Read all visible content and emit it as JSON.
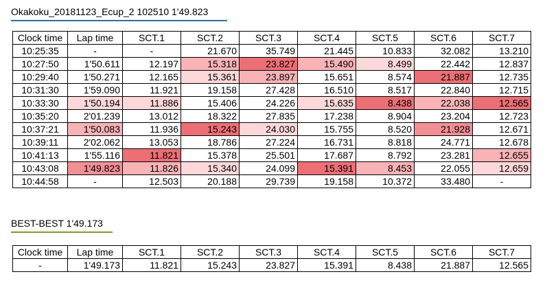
{
  "session": {
    "title": "Okakoku_20181123_Ecup_2 102510 1'49.823",
    "underline_color": "#2e6ba4"
  },
  "best": {
    "title": "BEST-BEST 1'49.173",
    "underline_color": "#7a9a2e"
  },
  "colors": {
    "level1": "#fcd8da",
    "level2": "#f8b3b7",
    "level3": "#f28f95",
    "level4": "#ec6f76"
  },
  "headers": [
    "Clock time",
    "Lap time",
    "SCT.1",
    "SCT.2",
    "SCT.3",
    "SCT.4",
    "SCT.5",
    "SCT.6",
    "SCT.7"
  ],
  "laps": [
    {
      "cells": [
        "10:25:35",
        "-",
        "-",
        "21.670",
        "35.749",
        "21.445",
        "10.833",
        "32.082",
        "13.210"
      ],
      "shade": [
        0,
        0,
        0,
        0,
        0,
        0,
        0,
        0,
        0
      ]
    },
    {
      "cells": [
        "10:27:50",
        "1'50.611",
        "12.197",
        "15.318",
        "23.827",
        "15.490",
        "8.499",
        "22.442",
        "12.837"
      ],
      "shade": [
        0,
        0,
        0,
        2,
        4,
        2,
        1,
        0,
        0
      ]
    },
    {
      "cells": [
        "10:29:40",
        "1'50.271",
        "12.165",
        "15.361",
        "23.897",
        "15.651",
        "8.574",
        "21.887",
        "12.735"
      ],
      "shade": [
        0,
        0,
        0,
        1,
        2,
        0,
        0,
        4,
        0
      ]
    },
    {
      "cells": [
        "10:31:30",
        "1'59.090",
        "11.921",
        "19.158",
        "27.428",
        "16.510",
        "8.517",
        "22.840",
        "12.715"
      ],
      "shade": [
        0,
        0,
        0,
        0,
        0,
        0,
        0,
        0,
        0
      ]
    },
    {
      "cells": [
        "10:33:30",
        "1'50.194",
        "11.886",
        "15.406",
        "24.226",
        "15.635",
        "8.438",
        "22.038",
        "12.565"
      ],
      "shade": [
        0,
        1,
        1,
        0,
        0,
        1,
        4,
        2,
        4
      ]
    },
    {
      "cells": [
        "10:35:20",
        "2'01.239",
        "13.012",
        "18.322",
        "27.835",
        "17.238",
        "8.904",
        "23.204",
        "12.723"
      ],
      "shade": [
        0,
        0,
        0,
        0,
        0,
        0,
        0,
        0,
        0
      ]
    },
    {
      "cells": [
        "10:37:21",
        "1'50.083",
        "11.936",
        "15.243",
        "24.030",
        "15.755",
        "8.520",
        "21.928",
        "12.671"
      ],
      "shade": [
        0,
        2,
        0,
        4,
        1,
        0,
        0,
        3,
        0
      ]
    },
    {
      "cells": [
        "10:39:11",
        "2'02.062",
        "13.053",
        "18.786",
        "27.224",
        "16.731",
        "8.818",
        "24.771",
        "12.678"
      ],
      "shade": [
        0,
        0,
        0,
        0,
        0,
        0,
        0,
        0,
        0
      ]
    },
    {
      "cells": [
        "10:41:13",
        "1'55.116",
        "11.821",
        "15.378",
        "25.501",
        "17.687",
        "8.792",
        "23.281",
        "12.655"
      ],
      "shade": [
        0,
        0,
        4,
        0,
        0,
        0,
        0,
        0,
        2
      ]
    },
    {
      "cells": [
        "10:43:08",
        "1'49.823",
        "11.826",
        "15.340",
        "24.099",
        "15.391",
        "8.453",
        "22.055",
        "12.659"
      ],
      "shade": [
        0,
        3,
        2,
        1,
        0,
        4,
        2,
        0,
        1
      ]
    },
    {
      "cells": [
        "10:44:58",
        "-",
        "12.503",
        "20.188",
        "29.739",
        "19.158",
        "10.372",
        "33.480",
        "-"
      ],
      "shade": [
        0,
        0,
        0,
        0,
        0,
        0,
        0,
        0,
        0
      ]
    }
  ],
  "best_row": [
    "-",
    "1'49.173",
    "11.821",
    "15.243",
    "23.827",
    "15.391",
    "8.438",
    "21.887",
    "12.565"
  ]
}
